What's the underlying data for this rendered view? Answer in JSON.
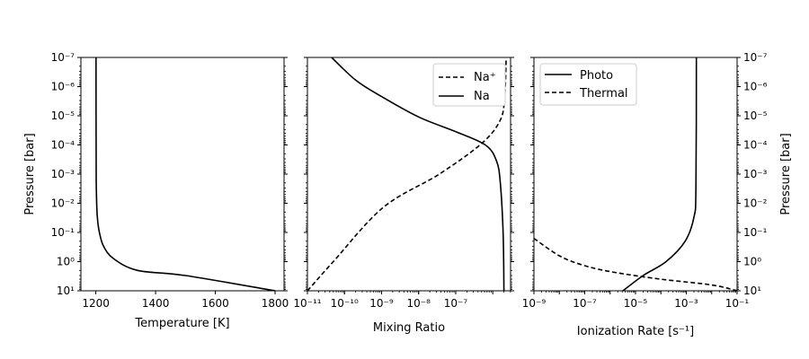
{
  "chart_data": [
    {
      "type": "line",
      "panel": "temperature",
      "xlabel": "Temperature [K]",
      "ylabel": "Pressure [bar]",
      "xscale": "linear",
      "yscale": "log",
      "y_inverted": true,
      "xlim": [
        1150,
        1830
      ],
      "ylim_exp": [
        1,
        -7
      ],
      "xticks": [
        {
          "value": 1200,
          "label": "1200"
        },
        {
          "value": 1400,
          "label": "1400"
        },
        {
          "value": 1600,
          "label": "1600"
        },
        {
          "value": 1800,
          "label": "1800"
        }
      ],
      "series": [
        {
          "style": "solid",
          "points": [
            [
              1800,
              10
            ],
            [
              1500,
              3
            ],
            [
              1340,
              2
            ],
            [
              1260,
              0.8
            ],
            [
              1226,
              0.3
            ],
            [
              1212,
              0.1
            ],
            [
              1205,
              0.03
            ],
            [
              1202,
              0.005
            ],
            [
              1201,
              0.0005
            ],
            [
              1200.5,
              1e-07
            ]
          ]
        }
      ]
    },
    {
      "type": "line",
      "panel": "mixing-ratio",
      "xlabel": "Mixing Ratio",
      "xscale": "log",
      "yscale": "log",
      "y_inverted": true,
      "xlim_exp": [
        -11,
        -5.52
      ],
      "ylim_exp": [
        1,
        -7
      ],
      "xticks": [
        {
          "exp": -11,
          "label": "10⁻¹¹"
        },
        {
          "exp": -10,
          "label": "10⁻¹⁰"
        },
        {
          "exp": -9,
          "label": "10⁻⁹"
        },
        {
          "exp": -8,
          "label": "10⁻⁸"
        },
        {
          "exp": -7,
          "label": "10⁻⁷"
        }
      ],
      "legend": {
        "position": "top-right",
        "entries": [
          {
            "label": "Na⁺",
            "style": "dashed"
          },
          {
            "label": "Na",
            "style": "solid"
          }
        ]
      },
      "series": [
        {
          "name": "Na⁺",
          "style": "dashed",
          "points": [
            [
              1e-11,
              10
            ],
            [
              5e-11,
              1
            ],
            [
              1.1e-09,
              0.014
            ],
            [
              3.6e-08,
              0.001
            ],
            [
              5e-07,
              8.9e-05
            ],
            [
              1.6e-06,
              1.4e-05
            ],
            [
              2.1e-06,
              2e-06
            ],
            [
              2.3e-06,
              1e-07
            ]
          ]
        },
        {
          "name": "Na",
          "style": "solid",
          "points": [
            [
              2e-06,
              10
            ],
            [
              1.9e-06,
              0.1
            ],
            [
              1.6e-06,
              0.002
            ],
            [
              1.26e-06,
              0.00035
            ],
            [
              6.3e-07,
              0.0001
            ],
            [
              1e-07,
              3.5e-05
            ],
            [
              1e-08,
              1.1e-05
            ],
            [
              1e-09,
              2.2e-06
            ],
            [
              2e-10,
              6e-07
            ],
            [
              4.5e-11,
              1e-07
            ]
          ]
        }
      ]
    },
    {
      "type": "line",
      "panel": "ionization-rate",
      "xlabel": "Ionization Rate [s⁻¹]",
      "ylabel": "Pressure [bar]",
      "xscale": "log",
      "yscale": "log",
      "y_inverted": true,
      "xlim_exp": [
        -9,
        -1
      ],
      "ylim_exp": [
        1,
        -7
      ],
      "xticks": [
        {
          "exp": -9,
          "label": "10⁻⁹"
        },
        {
          "exp": -7,
          "label": "10⁻⁷"
        },
        {
          "exp": -5,
          "label": "10⁻⁵"
        },
        {
          "exp": -3,
          "label": "10⁻³"
        },
        {
          "exp": -1,
          "label": "10⁻¹"
        }
      ],
      "legend": {
        "position": "top-left",
        "entries": [
          {
            "label": "Photo",
            "style": "solid"
          },
          {
            "label": "Thermal",
            "style": "dashed"
          }
        ]
      },
      "series": [
        {
          "name": "Photo",
          "style": "solid",
          "points": [
            [
              3.2e-06,
              10
            ],
            [
              2e-05,
              3
            ],
            [
              0.00016,
              1
            ],
            [
              0.0009,
              0.2
            ],
            [
              0.002,
              0.03
            ],
            [
              0.0024,
              0.003
            ],
            [
              0.0025,
              1e-07
            ]
          ]
        },
        {
          "name": "Thermal",
          "style": "dashed",
          "points": [
            [
              1e-09,
              0.16
            ],
            [
              1e-08,
              0.63
            ],
            [
              8e-08,
              1.3
            ],
            [
              1e-06,
              2.2
            ],
            [
              0.0001,
              4
            ],
            [
              0.01,
              6.3
            ],
            [
              0.1,
              10
            ]
          ]
        }
      ]
    }
  ],
  "ytick_labels": [
    "10⁻⁷",
    "10⁻⁶",
    "10⁻⁵",
    "10⁻⁴",
    "10⁻³",
    "10⁻²",
    "10⁻¹",
    "10⁰",
    "10¹"
  ]
}
